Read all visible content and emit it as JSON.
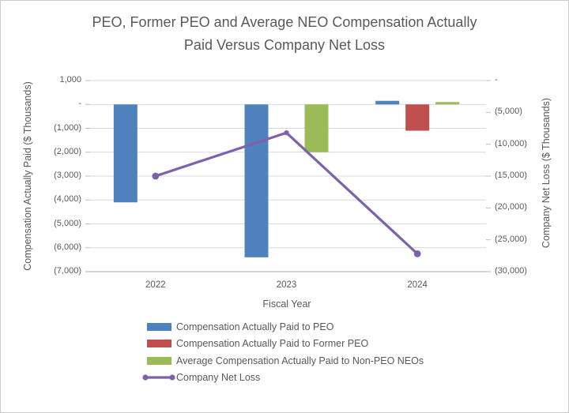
{
  "title_lines": {
    "line1": "PEO, Former PEO and Average NEO Compensation Actually",
    "line2": "Paid Versus Company Net Loss"
  },
  "left_axis": {
    "title": "Compensation Actually Paid ($ Thousands)",
    "tick_labels": [
      "1,000",
      "-",
      "(1,000)",
      "(2,000)",
      "(3,000)",
      "(4,000)",
      "(5,000)",
      "(6,000)",
      "(7,000)"
    ],
    "max": 1000,
    "min": -7000
  },
  "right_axis": {
    "title": "Company Net Loss ($ Thousands)",
    "tick_labels": [
      "-",
      "(5,000)",
      "(10,000)",
      "(15,000)",
      "(20,000)",
      "(25,000)",
      "(30,000)"
    ],
    "max": 0,
    "min": -30000
  },
  "x_axis": {
    "title": "Fiscal Year",
    "tick_labels": [
      "2022",
      "2023",
      "2024"
    ]
  },
  "legend": {
    "items": [
      {
        "label": "Compensation Actually Paid to PEO",
        "type": "bar",
        "color": "#4F81BD"
      },
      {
        "label": "Compensation Actually Paid to Former PEO",
        "type": "bar",
        "color": "#C0504D"
      },
      {
        "label": "Average Compensation Actually Paid to Non-PEO NEOs",
        "type": "bar",
        "color": "#9BBB59"
      },
      {
        "label": "Company Net Loss",
        "type": "line",
        "color": "#7E61A8"
      }
    ]
  },
  "colors": {
    "peo_bar": "#4F81BD",
    "former_peo_bar": "#C0504D",
    "neo_bar": "#9BBB59",
    "netloss_line": "#7E61A8",
    "gridline": "#D9D9D9",
    "axis_line": "#BFBFBF",
    "text": "#595959"
  },
  "chart_data": {
    "type": "bar+line combo, dual axis",
    "title": "PEO, Former PEO and Average NEO Compensation Actually Paid Versus Company Net Loss",
    "categories": [
      "2022",
      "2023",
      "2024"
    ],
    "xlabel": "Fiscal Year",
    "left_ylabel": "Compensation Actually Paid ($ Thousands)",
    "right_ylabel": "Company Net Loss ($ Thousands)",
    "left_ylim": [
      -7000,
      1000
    ],
    "right_ylim": [
      -30000,
      0
    ],
    "grid": true,
    "legend_position": "bottom-left-aligned-list",
    "series": [
      {
        "name": "Compensation Actually Paid to PEO",
        "type": "bar",
        "axis": "left",
        "color": "#4F81BD",
        "values": [
          -4100,
          -6400,
          150
        ]
      },
      {
        "name": "Compensation Actually Paid to Former PEO",
        "type": "bar",
        "axis": "left",
        "color": "#C0504D",
        "values": [
          null,
          null,
          -1100
        ]
      },
      {
        "name": "Average Compensation Actually Paid to Non-PEO NEOs",
        "type": "bar",
        "axis": "left",
        "color": "#9BBB59",
        "values": [
          null,
          -2000,
          100
        ]
      },
      {
        "name": "Company Net Loss",
        "type": "line",
        "axis": "right",
        "color": "#7E61A8",
        "marker": "circle",
        "values": [
          -15000,
          -8200,
          -27200
        ]
      }
    ]
  }
}
